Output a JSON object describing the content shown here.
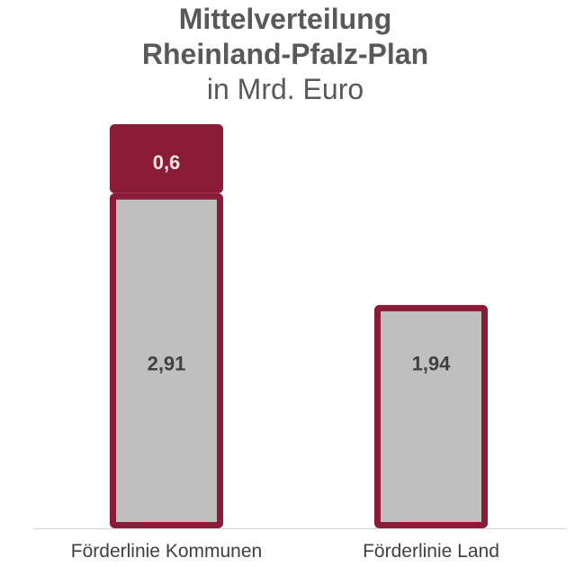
{
  "chart_data": {
    "type": "bar",
    "stacked": true,
    "title": [
      "Mittelverteilung",
      "Rheinland-Pfalz-Plan"
    ],
    "subtitle": "in Mrd. Euro",
    "categories": [
      "Förderlinie Kommunen",
      "Förderlinie Land"
    ],
    "series": [
      {
        "values": [
          2.91,
          1.94
        ],
        "labels": [
          "2,91",
          "1,94"
        ],
        "color": "#BFBFBF",
        "label_color": "#404040"
      },
      {
        "values": [
          0.6,
          null
        ],
        "labels": [
          "0,6",
          null
        ],
        "color": "#8A1C37",
        "label_color": "#F2E4E7"
      }
    ],
    "bar_border_color": "#8A1C37",
    "grid": false,
    "legend": "none"
  },
  "colors": {
    "title": "#595959",
    "category_label": "#404040",
    "axis_line": "#D9D9D9",
    "background": "#FFFFFF"
  }
}
